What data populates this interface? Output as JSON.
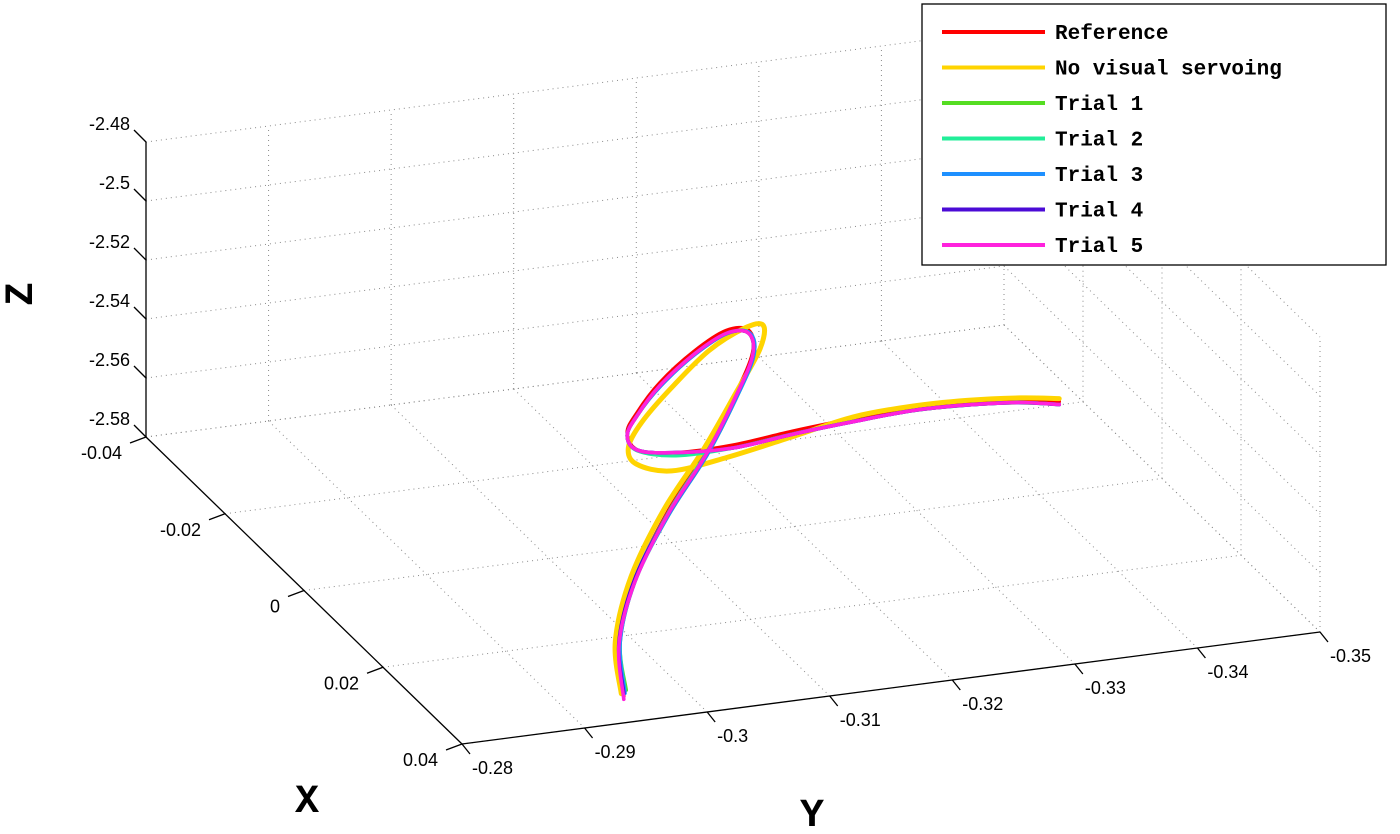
{
  "chart_data": {
    "type": "line",
    "projection": "3d",
    "xlabel": "X",
    "ylabel": "Y",
    "zlabel": "Z",
    "xlim": [
      -0.04,
      0.04
    ],
    "ylim": [
      -0.28,
      -0.35
    ],
    "zlim": [
      -2.58,
      -2.48
    ],
    "x_ticks": [
      "0.04",
      "0.02",
      "0",
      "-0.02",
      "-0.04"
    ],
    "y_ticks": [
      "-0.28",
      "-0.29",
      "-0.3",
      "-0.31",
      "-0.32",
      "-0.33",
      "-0.34",
      "-0.35"
    ],
    "z_ticks": [
      "-2.48",
      "-2.5",
      "-2.52",
      "-2.54",
      "-2.56",
      "-2.58"
    ],
    "grid": true,
    "legend_position": "top-right",
    "series": [
      {
        "name": "Reference",
        "color": "#ff0000",
        "x": [
          0.04,
          0.036,
          0.031,
          0.026,
          0.021,
          0.015,
          0.009,
          0.003,
          -0.003,
          -0.008,
          -0.012,
          -0.014,
          -0.015,
          -0.014,
          -0.011,
          -0.007,
          -0.003,
          0.0,
          0.002,
          0.003,
          0.004,
          0.005
        ],
        "y": [
          -0.2932,
          -0.2941,
          -0.297,
          -0.3013,
          -0.306,
          -0.3103,
          -0.3137,
          -0.3153,
          -0.3154,
          -0.3144,
          -0.3129,
          -0.3117,
          -0.3112,
          -0.3118,
          -0.314,
          -0.3173,
          -0.321,
          -0.325,
          -0.329,
          -0.333,
          -0.337,
          -0.34
        ],
        "z": [
          -2.571,
          -2.559,
          -2.545,
          -2.531,
          -2.52,
          -2.511,
          -2.506,
          -2.507,
          -2.515,
          -2.528,
          -2.543,
          -2.555,
          -2.563,
          -2.568,
          -2.566,
          -2.56,
          -2.552,
          -2.546,
          -2.542,
          -2.541,
          -2.541,
          -2.542
        ]
      },
      {
        "name": "No visual servoing",
        "color": "#ffd400",
        "x": [
          0.04,
          0.036,
          0.031,
          0.026,
          0.021,
          0.015,
          0.009,
          0.003,
          -0.003,
          -0.009,
          -0.013,
          -0.015,
          -0.015,
          -0.013,
          -0.009,
          -0.005,
          -0.001,
          0.001,
          0.003,
          0.004,
          0.005,
          0.005
        ],
        "y": [
          -0.293,
          -0.2938,
          -0.2967,
          -0.301,
          -0.3058,
          -0.3104,
          -0.3143,
          -0.3165,
          -0.3169,
          -0.3159,
          -0.3141,
          -0.3124,
          -0.3113,
          -0.3113,
          -0.3129,
          -0.3161,
          -0.3201,
          -0.3245,
          -0.3287,
          -0.3328,
          -0.3368,
          -0.34
        ],
        "z": [
          -2.57,
          -2.558,
          -2.544,
          -2.53,
          -2.519,
          -2.51,
          -2.505,
          -2.506,
          -2.515,
          -2.53,
          -2.547,
          -2.56,
          -2.568,
          -2.571,
          -2.569,
          -2.561,
          -2.551,
          -2.544,
          -2.54,
          -2.539,
          -2.539,
          -2.541
        ]
      },
      {
        "name": "Trial 1",
        "color": "#55dd22",
        "x": [
          0.04,
          0.036,
          0.031,
          0.026,
          0.021,
          0.015,
          0.009,
          0.003,
          -0.003,
          -0.008,
          -0.012,
          -0.014,
          -0.015,
          -0.014,
          -0.011,
          -0.007,
          -0.003,
          0.0,
          0.002,
          0.003,
          0.004,
          0.005
        ],
        "y": [
          -0.2934,
          -0.2942,
          -0.2971,
          -0.3014,
          -0.3061,
          -0.3104,
          -0.3137,
          -0.3153,
          -0.3154,
          -0.3144,
          -0.3129,
          -0.3117,
          -0.3112,
          -0.3118,
          -0.3139,
          -0.3172,
          -0.3209,
          -0.3249,
          -0.3289,
          -0.3329,
          -0.3369,
          -0.34
        ],
        "z": [
          -2.569,
          -2.558,
          -2.545,
          -2.532,
          -2.521,
          -2.512,
          -2.507,
          -2.508,
          -2.516,
          -2.529,
          -2.544,
          -2.556,
          -2.564,
          -2.568,
          -2.566,
          -2.561,
          -2.553,
          -2.547,
          -2.543,
          -2.542,
          -2.542,
          -2.543
        ]
      },
      {
        "name": "Trial 2",
        "color": "#22ee99",
        "x": [
          0.04,
          0.036,
          0.031,
          0.026,
          0.021,
          0.015,
          0.009,
          0.003,
          -0.003,
          -0.008,
          -0.012,
          -0.014,
          -0.015,
          -0.014,
          -0.011,
          -0.007,
          -0.003,
          0.0,
          0.002,
          0.003,
          0.004,
          0.005
        ],
        "y": [
          -0.2933,
          -0.2942,
          -0.2971,
          -0.3014,
          -0.3061,
          -0.3104,
          -0.3138,
          -0.3154,
          -0.3155,
          -0.3145,
          -0.313,
          -0.3117,
          -0.3112,
          -0.3117,
          -0.3139,
          -0.3172,
          -0.3209,
          -0.3249,
          -0.3289,
          -0.3329,
          -0.3369,
          -0.34
        ],
        "z": [
          -2.569,
          -2.557,
          -2.544,
          -2.531,
          -2.52,
          -2.512,
          -2.507,
          -2.508,
          -2.516,
          -2.529,
          -2.544,
          -2.556,
          -2.564,
          -2.568,
          -2.567,
          -2.561,
          -2.553,
          -2.547,
          -2.543,
          -2.542,
          -2.542,
          -2.543
        ]
      },
      {
        "name": "Trial 3",
        "color": "#1e90ff",
        "x": [
          0.04,
          0.036,
          0.031,
          0.026,
          0.021,
          0.015,
          0.009,
          0.003,
          -0.003,
          -0.008,
          -0.012,
          -0.014,
          -0.015,
          -0.014,
          -0.011,
          -0.007,
          -0.003,
          0.0,
          0.002,
          0.003,
          0.004,
          0.005
        ],
        "y": [
          -0.2933,
          -0.2942,
          -0.2971,
          -0.3014,
          -0.3061,
          -0.3104,
          -0.3138,
          -0.3154,
          -0.3155,
          -0.3145,
          -0.313,
          -0.3117,
          -0.3112,
          -0.3118,
          -0.314,
          -0.3173,
          -0.321,
          -0.325,
          -0.329,
          -0.333,
          -0.337,
          -0.34
        ],
        "z": [
          -2.57,
          -2.558,
          -2.545,
          -2.532,
          -2.521,
          -2.512,
          -2.507,
          -2.508,
          -2.516,
          -2.529,
          -2.544,
          -2.556,
          -2.564,
          -2.568,
          -2.566,
          -2.561,
          -2.553,
          -2.547,
          -2.543,
          -2.542,
          -2.542,
          -2.543
        ]
      },
      {
        "name": "Trial 4",
        "color": "#4b0bd6",
        "x": [
          0.04,
          0.036,
          0.031,
          0.026,
          0.021,
          0.015,
          0.009,
          0.003,
          -0.003,
          -0.008,
          -0.012,
          -0.014,
          -0.015,
          -0.014,
          -0.011,
          -0.007,
          -0.003,
          0.0,
          0.002,
          0.003,
          0.004,
          0.005
        ],
        "y": [
          -0.2932,
          -0.2941,
          -0.297,
          -0.3013,
          -0.306,
          -0.3103,
          -0.3137,
          -0.3153,
          -0.3154,
          -0.3144,
          -0.3129,
          -0.3117,
          -0.3112,
          -0.3118,
          -0.314,
          -0.3173,
          -0.321,
          -0.325,
          -0.329,
          -0.333,
          -0.337,
          -0.34
        ],
        "z": [
          -2.57,
          -2.558,
          -2.545,
          -2.532,
          -2.521,
          -2.512,
          -2.507,
          -2.508,
          -2.516,
          -2.529,
          -2.544,
          -2.556,
          -2.564,
          -2.568,
          -2.566,
          -2.561,
          -2.553,
          -2.547,
          -2.543,
          -2.542,
          -2.542,
          -2.543
        ]
      },
      {
        "name": "Trial 5",
        "color": "#ff22dd",
        "x": [
          0.04,
          0.036,
          0.031,
          0.026,
          0.021,
          0.015,
          0.009,
          0.003,
          -0.003,
          -0.008,
          -0.012,
          -0.014,
          -0.015,
          -0.014,
          -0.011,
          -0.007,
          -0.003,
          0.0,
          0.002,
          0.003,
          0.004,
          0.005
        ],
        "y": [
          -0.2932,
          -0.2941,
          -0.297,
          -0.3013,
          -0.306,
          -0.3103,
          -0.3137,
          -0.3153,
          -0.3154,
          -0.3144,
          -0.3129,
          -0.3117,
          -0.3112,
          -0.3118,
          -0.314,
          -0.3173,
          -0.321,
          -0.325,
          -0.329,
          -0.333,
          -0.337,
          -0.34
        ],
        "z": [
          -2.572,
          -2.559,
          -2.546,
          -2.532,
          -2.521,
          -2.512,
          -2.507,
          -2.508,
          -2.516,
          -2.529,
          -2.544,
          -2.556,
          -2.564,
          -2.568,
          -2.566,
          -2.561,
          -2.553,
          -2.547,
          -2.543,
          -2.542,
          -2.542,
          -2.543
        ]
      }
    ]
  }
}
